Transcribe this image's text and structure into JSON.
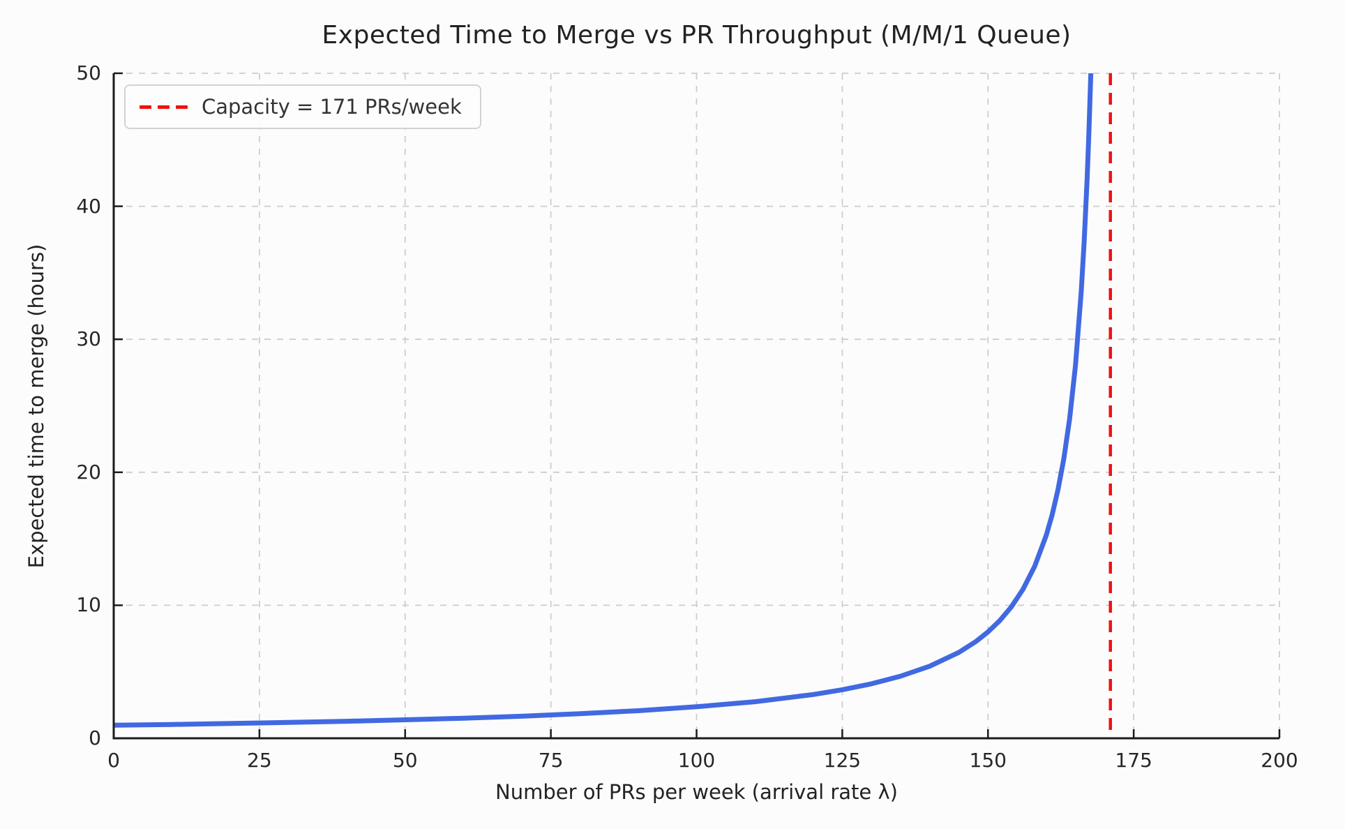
{
  "chart_data": {
    "type": "line",
    "title": "Expected Time to Merge vs PR Throughput (M/M/1 Queue)",
    "xlabel": "Number of PRs per week (arrival rate λ)",
    "ylabel": "Expected time to merge (hours)",
    "xlim": [
      0,
      200
    ],
    "ylim": [
      0,
      50
    ],
    "xticks": [
      0,
      25,
      50,
      75,
      100,
      125,
      150,
      175,
      200
    ],
    "yticks": [
      0,
      10,
      20,
      30,
      40,
      50
    ],
    "grid": true,
    "grid_style": "dashed",
    "legend": {
      "position": "upper-left",
      "entries": [
        {
          "label": "Capacity = 171 PRs/week",
          "color": "#ee1111",
          "line_style": "dashed"
        }
      ]
    },
    "capacity_line": {
      "x": 171,
      "color": "#ee1111",
      "style": "dashed"
    },
    "series": [
      {
        "name": "Expected time to merge",
        "color": "#4169e1",
        "x": [
          0,
          10,
          20,
          30,
          40,
          50,
          60,
          70,
          80,
          90,
          100,
          110,
          120,
          125,
          130,
          135,
          140,
          145,
          148,
          150,
          152,
          154,
          156,
          158,
          160,
          161,
          162,
          163,
          164,
          165,
          166,
          166.5,
          167,
          167.3,
          167.6,
          167.64
        ],
        "y": [
          0.98,
          1.04,
          1.11,
          1.19,
          1.28,
          1.39,
          1.51,
          1.66,
          1.85,
          2.07,
          2.37,
          2.75,
          3.29,
          3.65,
          4.1,
          4.67,
          5.42,
          6.46,
          7.3,
          8.0,
          8.84,
          9.88,
          11.2,
          12.92,
          15.27,
          16.8,
          18.67,
          21.0,
          24.0,
          28.0,
          33.6,
          37.33,
          42.0,
          45.41,
          49.41,
          50.0
        ]
      }
    ]
  }
}
